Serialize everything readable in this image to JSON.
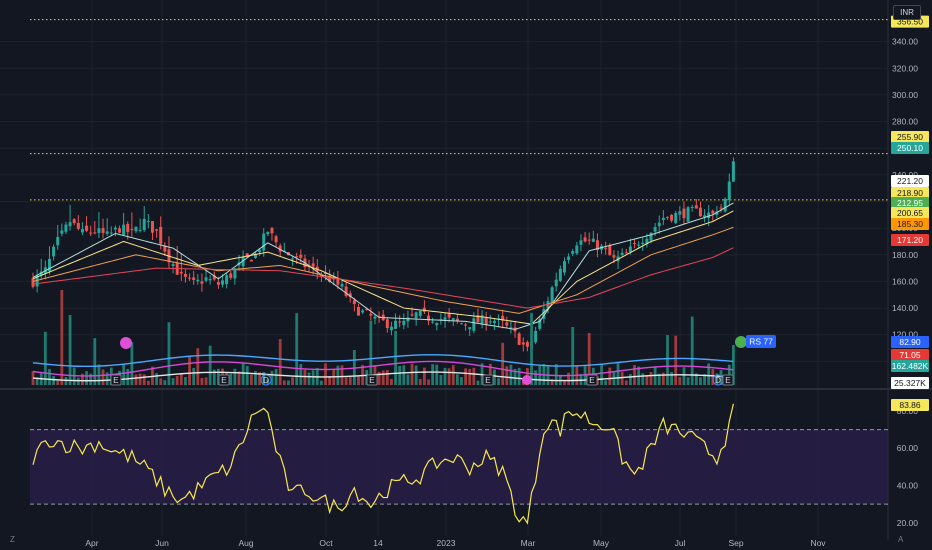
{
  "currency_label": "INR",
  "corner_left": "Z",
  "corner_right": "A",
  "colors": {
    "background": "#131722",
    "grid": "#1e222d",
    "up": "#26a69a",
    "down": "#ef5350",
    "ema_fast": "#b2dfdb",
    "ema_mid": "#fbe58b",
    "ema_slow": "#f0a050",
    "ema_long": "#e5465a",
    "level_line": "#e8d74a",
    "vol_line_blue": "#4aa8ff",
    "vol_line_magenta": "#d44ad6",
    "vol_line_white": "#e6e6e6",
    "rsi_line": "#f6e84d",
    "rsi_band": "#2a1f4a"
  },
  "chart_data": [
    {
      "type": "candlestick",
      "ylim": [
        80,
        360
      ],
      "yticks": [
        "100.00",
        "120.00",
        "140.00",
        "160.00",
        "180.00",
        "200.00",
        "220.00",
        "240.00",
        "260.00",
        "280.00",
        "300.00",
        "320.00",
        "340.00"
      ],
      "xticks": [
        "Apr",
        "Jun",
        "Aug",
        "Oct",
        "14",
        "2023",
        "Mar",
        "May",
        "Jul",
        "Sep",
        "Nov"
      ],
      "horizontal_levels": [
        356.5,
        255.9,
        221.2
      ],
      "price_tags": [
        {
          "label": "356.50",
          "value": 356.5,
          "bg": "#f5e65a",
          "fg": "#131722"
        },
        {
          "label": "255.90",
          "value": 255.9,
          "bg": "#f5e65a",
          "fg": "#131722"
        },
        {
          "label": "250.10",
          "value": 250.1,
          "bg": "#26a69a",
          "fg": "#ffffff"
        },
        {
          "label": "221.20",
          "value": 221.2,
          "bg": "#ffffff",
          "fg": "#131722"
        },
        {
          "label": "218.90",
          "value": 218.9,
          "bg": "#f5e65a",
          "fg": "#131722"
        },
        {
          "label": "212.95",
          "value": 212.95,
          "bg": "#4caf50",
          "fg": "#ffffff"
        },
        {
          "label": "200.65",
          "value": 200.65,
          "bg": "#f5e65a",
          "fg": "#131722"
        },
        {
          "label": "185.30",
          "value": 185.3,
          "bg": "#ff9800",
          "fg": "#131722"
        },
        {
          "label": "171.20",
          "value": 171.2,
          "bg": "#e53935",
          "fg": "#ffffff"
        }
      ],
      "series_anchor_close": [
        [
          0,
          160
        ],
        [
          3,
          168
        ],
        [
          6,
          190
        ],
        [
          9,
          205
        ],
        [
          12,
          196
        ],
        [
          15,
          198
        ],
        [
          18,
          194
        ],
        [
          21,
          200
        ],
        [
          24,
          196
        ],
        [
          27,
          205
        ],
        [
          30,
          197
        ],
        [
          33,
          178
        ],
        [
          36,
          163
        ],
        [
          39,
          158
        ],
        [
          42,
          162
        ],
        [
          45,
          158
        ],
        [
          48,
          165
        ],
        [
          51,
          175
        ],
        [
          54,
          180
        ],
        [
          57,
          198
        ],
        [
          60,
          185
        ],
        [
          63,
          178
        ],
        [
          66,
          172
        ],
        [
          69,
          168
        ],
        [
          72,
          162
        ],
        [
          75,
          155
        ],
        [
          78,
          140
        ],
        [
          81,
          135
        ],
        [
          84,
          130
        ],
        [
          87,
          128
        ],
        [
          90,
          128
        ],
        [
          93,
          135
        ],
        [
          96,
          133
        ],
        [
          99,
          132
        ],
        [
          102,
          130
        ],
        [
          105,
          128
        ],
        [
          108,
          130
        ],
        [
          111,
          132
        ],
        [
          114,
          128
        ],
        [
          117,
          120
        ],
        [
          120,
          108
        ],
        [
          123,
          130
        ],
        [
          126,
          155
        ],
        [
          129,
          178
        ],
        [
          132,
          190
        ],
        [
          135,
          190
        ],
        [
          138,
          185
        ],
        [
          141,
          176
        ],
        [
          144,
          180
        ],
        [
          147,
          190
        ],
        [
          150,
          198
        ],
        [
          153,
          208
        ],
        [
          156,
          210
        ],
        [
          159,
          212
        ],
        [
          162,
          212
        ],
        [
          165,
          210
        ],
        [
          167,
          215
        ],
        [
          168,
          222
        ],
        [
          169,
          235
        ],
        [
          170,
          250.1
        ]
      ],
      "ema_anchors": {
        "fast": [
          [
            0,
            163
          ],
          [
            20,
            196
          ],
          [
            34,
            185
          ],
          [
            45,
            162
          ],
          [
            57,
            189
          ],
          [
            66,
            174
          ],
          [
            84,
            133
          ],
          [
            105,
            130
          ],
          [
            117,
            124
          ],
          [
            123,
            130
          ],
          [
            135,
            183
          ],
          [
            150,
            195
          ],
          [
            165,
            210
          ],
          [
            170,
            218.9
          ]
        ],
        "mid": [
          [
            0,
            162
          ],
          [
            22,
            190
          ],
          [
            40,
            172
          ],
          [
            57,
            182
          ],
          [
            70,
            168
          ],
          [
            90,
            140
          ],
          [
            110,
            133
          ],
          [
            121,
            128
          ],
          [
            132,
            160
          ],
          [
            150,
            190
          ],
          [
            165,
            205
          ],
          [
            170,
            212.95
          ]
        ],
        "slow": [
          [
            0,
            160
          ],
          [
            25,
            180
          ],
          [
            45,
            168
          ],
          [
            60,
            172
          ],
          [
            80,
            158
          ],
          [
            100,
            145
          ],
          [
            118,
            136
          ],
          [
            132,
            150
          ],
          [
            150,
            180
          ],
          [
            165,
            195
          ],
          [
            170,
            200.65
          ]
        ],
        "long": [
          [
            0,
            158
          ],
          [
            30,
            170
          ],
          [
            60,
            168
          ],
          [
            90,
            155
          ],
          [
            120,
            140
          ],
          [
            135,
            148
          ],
          [
            150,
            165
          ],
          [
            165,
            178
          ],
          [
            170,
            185.3
          ]
        ]
      },
      "markers": [
        "E",
        "E",
        "D",
        "E",
        "E",
        "E",
        "D",
        "E"
      ]
    },
    {
      "type": "bar",
      "name": "volume",
      "tags": [
        {
          "label": "82.90",
          "bg": "#2962ff",
          "fg": "#ffffff"
        },
        {
          "label": "71.05",
          "bg": "#e53935",
          "fg": "#ffffff"
        },
        {
          "label": "162.482K",
          "bg": "#26a69a",
          "fg": "#ffffff"
        },
        {
          "label": "25.327K",
          "bg": "#ffffff",
          "fg": "#131722"
        }
      ],
      "badge": "RS 77"
    },
    {
      "type": "line",
      "name": "rsi",
      "ylim": [
        14,
        88
      ],
      "yticks": [
        "20.00",
        "40.00",
        "60.00",
        "80.00"
      ],
      "bands": [
        30,
        70
      ],
      "last_value_label": "83.86",
      "anchors": [
        [
          0,
          55
        ],
        [
          4,
          65
        ],
        [
          8,
          62
        ],
        [
          12,
          60
        ],
        [
          16,
          63
        ],
        [
          20,
          58
        ],
        [
          24,
          55
        ],
        [
          28,
          48
        ],
        [
          32,
          38
        ],
        [
          36,
          32
        ],
        [
          40,
          38
        ],
        [
          44,
          45
        ],
        [
          48,
          50
        ],
        [
          51,
          65
        ],
        [
          53,
          75
        ],
        [
          55,
          82
        ],
        [
          57,
          78
        ],
        [
          59,
          60
        ],
        [
          61,
          45
        ],
        [
          63,
          35
        ],
        [
          66,
          38
        ],
        [
          70,
          32
        ],
        [
          74,
          28
        ],
        [
          78,
          38
        ],
        [
          82,
          30
        ],
        [
          86,
          38
        ],
        [
          90,
          42
        ],
        [
          94,
          45
        ],
        [
          98,
          52
        ],
        [
          102,
          55
        ],
        [
          106,
          50
        ],
        [
          110,
          55
        ],
        [
          114,
          48
        ],
        [
          116,
          35
        ],
        [
          118,
          22
        ],
        [
          120,
          20
        ],
        [
          122,
          45
        ],
        [
          124,
          72
        ],
        [
          126,
          74
        ],
        [
          128,
          70
        ],
        [
          130,
          80
        ],
        [
          133,
          78
        ],
        [
          136,
          74
        ],
        [
          140,
          72
        ],
        [
          143,
          55
        ],
        [
          146,
          45
        ],
        [
          150,
          60
        ],
        [
          153,
          72
        ],
        [
          156,
          70
        ],
        [
          160,
          65
        ],
        [
          163,
          60
        ],
        [
          166,
          55
        ],
        [
          168,
          65
        ],
        [
          170,
          83.86
        ]
      ]
    }
  ]
}
